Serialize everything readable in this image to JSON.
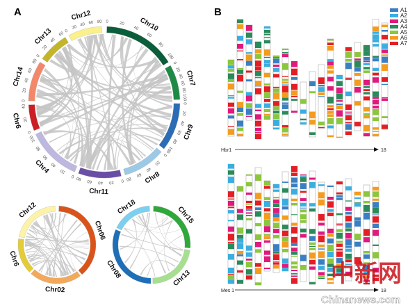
{
  "panel_a": {
    "label": "A",
    "main_circle": {
      "chromosomes": [
        {
          "name": "Chr10",
          "color": "#0b5e3a",
          "start": 2,
          "end": 58,
          "ticks": [
            "0",
            "20",
            "40",
            "60",
            "80",
            "100"
          ]
        },
        {
          "name": "Chr7",
          "color": "#1e8a45",
          "start": 61,
          "end": 88,
          "ticks": [
            "0",
            "20",
            "40",
            "60",
            "80",
            "100"
          ]
        },
        {
          "name": "Chr9",
          "color": "#2a6db5",
          "start": 91,
          "end": 128,
          "ticks": [
            "0",
            "20",
            "40",
            "60",
            "80",
            "100"
          ]
        },
        {
          "name": "Chr8",
          "color": "#9cc9e6",
          "start": 131,
          "end": 164,
          "ticks": [
            "0",
            "20",
            "40",
            "60",
            "80"
          ]
        },
        {
          "name": "Chr11",
          "color": "#6a4ea6",
          "start": 167,
          "end": 200,
          "ticks": [
            "0",
            "20",
            "40",
            "60",
            "80"
          ]
        },
        {
          "name": "Chr4",
          "color": "#bcb8e0",
          "start": 203,
          "end": 245,
          "ticks": [
            "0",
            "20",
            "40",
            "60",
            "80",
            "100"
          ]
        },
        {
          "name": "Chr6",
          "color": "#cc1f24",
          "start": 248,
          "end": 268,
          "ticks": [
            "0",
            "20",
            "40"
          ]
        },
        {
          "name": "Chr14",
          "color": "#f4876a",
          "start": 271,
          "end": 302,
          "ticks": [
            "0",
            "20",
            "40",
            "60",
            "80"
          ]
        },
        {
          "name": "Chr13",
          "color": "#c2b52a",
          "start": 305,
          "end": 329,
          "ticks": [
            "0",
            "20",
            "40",
            "60"
          ]
        },
        {
          "name": "Chr12",
          "color": "#fbf08a",
          "start": 332,
          "end": 358,
          "ticks": [
            "0",
            "20",
            "40",
            "60",
            "80"
          ]
        }
      ]
    },
    "left_circle": {
      "chromosomes": [
        {
          "name": "Chr12",
          "color": "#fdf3a8",
          "start": 282,
          "end": 357
        },
        {
          "name": "Chr06",
          "color": "#d9541a",
          "start": 3,
          "end": 140
        },
        {
          "name": "Chr02",
          "color": "#f3a95b",
          "start": 143,
          "end": 222
        },
        {
          "name": "Chr6",
          "color": "#e3cc36",
          "start": 225,
          "end": 279
        }
      ]
    },
    "right_circle": {
      "chromosomes": [
        {
          "name": "Chr18",
          "color": "#7cd0ef",
          "start": 296,
          "end": 357
        },
        {
          "name": "Chr15",
          "color": "#2fa83a",
          "start": 3,
          "end": 95
        },
        {
          "name": "Chr13",
          "color": "#a6e08f",
          "start": 98,
          "end": 178
        },
        {
          "name": "Chr08",
          "color": "#1d6fb8",
          "start": 181,
          "end": 293
        }
      ]
    },
    "link_color": "#c4c4c4"
  },
  "panel_b": {
    "label": "B",
    "legend": [
      {
        "name": "A1",
        "color": "#3a7fc2"
      },
      {
        "name": "A2",
        "color": "#3aaee0"
      },
      {
        "name": "A3",
        "color": "#e0197d"
      },
      {
        "name": "A4",
        "color": "#2a8a5a"
      },
      {
        "name": "A5",
        "color": "#8cc63e"
      },
      {
        "name": "A6",
        "color": "#f39c1f"
      },
      {
        "name": "A7",
        "color": "#e31e24"
      }
    ],
    "top_axis": {
      "start": "Hbr1",
      "end": "18"
    },
    "bottom_axis": {
      "start": "Mes 1",
      "end": "18"
    }
  },
  "watermark": {
    "text": "Chinanews.com",
    "logo": "中新网"
  }
}
